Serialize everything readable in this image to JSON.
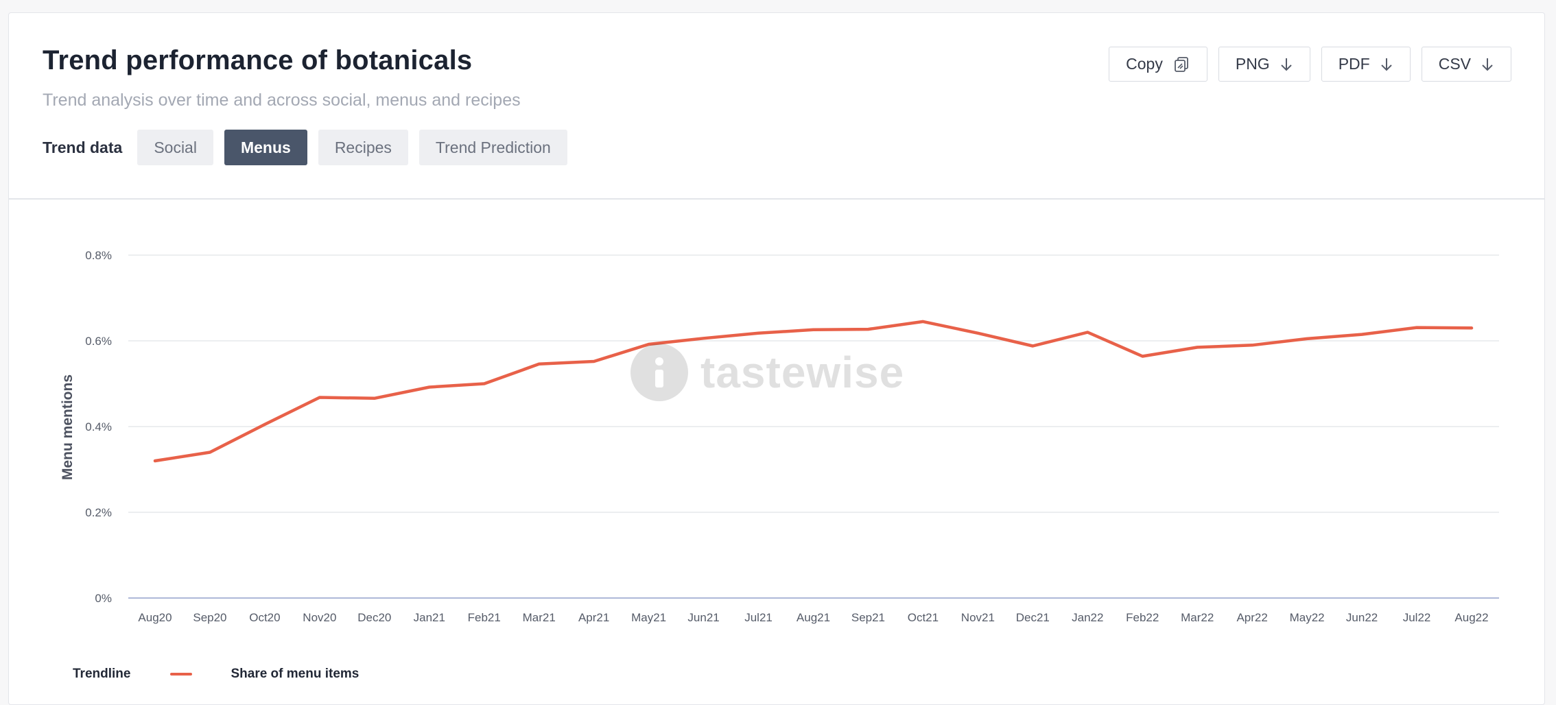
{
  "header": {
    "title": "Trend performance of botanicals",
    "subtitle": "Trend analysis over time and across social, menus and recipes",
    "tabs_label": "Trend data",
    "tabs": [
      {
        "label": "Social",
        "active": false
      },
      {
        "label": "Menus",
        "active": true
      },
      {
        "label": "Recipes",
        "active": false
      },
      {
        "label": "Trend Prediction",
        "active": false
      }
    ],
    "actions": [
      {
        "label": "Copy",
        "icon": "copy-icon"
      },
      {
        "label": "PNG",
        "icon": "download-arrow-icon"
      },
      {
        "label": "PDF",
        "icon": "download-arrow-icon"
      },
      {
        "label": "CSV",
        "icon": "download-arrow-icon"
      }
    ]
  },
  "watermark": "tastewise",
  "legend": {
    "title": "Trendline",
    "series_label": "Share of menu items"
  },
  "colors": {
    "line": "#e86149",
    "active_tab": "#4a566a",
    "grid": "#e6e8ec",
    "baseline": "#aeb8d8"
  },
  "chart_data": {
    "type": "line",
    "ylabel": "Menu mentions",
    "y_ticks": [
      "0%",
      "0.2%",
      "0.4%",
      "0.6%",
      "0.8%"
    ],
    "ylim": [
      0,
      0.8
    ],
    "grid": true,
    "legend_position": "bottom-left",
    "categories": [
      "Aug20",
      "Sep20",
      "Oct20",
      "Nov20",
      "Dec20",
      "Jan21",
      "Feb21",
      "Mar21",
      "Apr21",
      "May21",
      "Jun21",
      "Jul21",
      "Aug21",
      "Sep21",
      "Oct21",
      "Nov21",
      "Dec21",
      "Jan22",
      "Feb22",
      "Mar22",
      "Apr22",
      "May22",
      "Jun22",
      "Jul22",
      "Aug22"
    ],
    "series": [
      {
        "name": "Share of menu items",
        "values": [
          0.32,
          0.34,
          0.405,
          0.468,
          0.466,
          0.492,
          0.5,
          0.546,
          0.552,
          0.592,
          0.606,
          0.618,
          0.626,
          0.627,
          0.645,
          0.618,
          0.588,
          0.62,
          0.564,
          0.585,
          0.59,
          0.605,
          0.615,
          0.631,
          0.63
        ]
      }
    ]
  }
}
